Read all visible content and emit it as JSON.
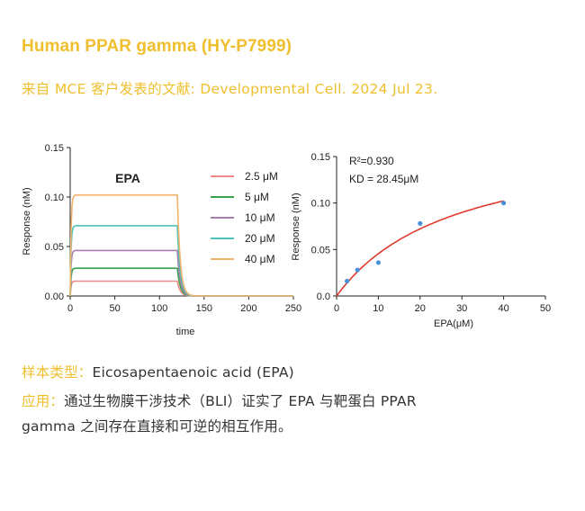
{
  "header": {
    "title": "Human PPAR gamma (HY-P7999)",
    "source": "来自 MCE 客户发表的文献: Developmental Cell. 2024 Jul 23."
  },
  "colors": {
    "accent": "#EFBF2E",
    "body_text": "#333333",
    "fit_line": "#E03A2F",
    "points": "#4A90D9"
  },
  "chart_data": [
    {
      "type": "line",
      "title": "EPA",
      "xlabel": "time",
      "ylabel": "Response (nM)",
      "xlim": [
        0,
        250
      ],
      "ylim": [
        0,
        0.15
      ],
      "xticks": [
        "0",
        "50",
        "100",
        "150",
        "200",
        "250"
      ],
      "yticks": [
        "0.00",
        "0.05",
        "0.10",
        "0.15"
      ],
      "grid": false,
      "legend_position": "right",
      "association_end": 120,
      "series": [
        {
          "name": "2.5 μM",
          "color": "#F08A8A",
          "plateau": 0.015
        },
        {
          "name": "5 μM",
          "color": "#3BA14A",
          "plateau": 0.028
        },
        {
          "name": "10 μM",
          "color": "#A77DAE",
          "plateau": 0.046
        },
        {
          "name": "20 μM",
          "color": "#4EC3B8",
          "plateau": 0.071
        },
        {
          "name": "40 μM",
          "color": "#F2B36C",
          "plateau": 0.102
        }
      ]
    },
    {
      "type": "scatter",
      "xlabel": "EPA(μM)",
      "ylabel": "Response (nM)",
      "xlim": [
        0,
        50
      ],
      "ylim": [
        0,
        0.15
      ],
      "xticks": [
        "0",
        "10",
        "20",
        "30",
        "40",
        "50"
      ],
      "yticks": [
        "0.0",
        "0.05",
        "0.10",
        "0.15"
      ],
      "grid": false,
      "annotations": [
        "R²=0.930",
        "KD = 28.45μM"
      ],
      "points": [
        {
          "x": 2.5,
          "y": 0.016
        },
        {
          "x": 5,
          "y": 0.028
        },
        {
          "x": 10,
          "y": 0.036
        },
        {
          "x": 20,
          "y": 0.078
        },
        {
          "x": 40,
          "y": 0.1
        }
      ],
      "fit": {
        "model": "one-site binding",
        "Bmax": 0.175,
        "KD": 28.45
      }
    }
  ],
  "info": {
    "sample_label": "样本类型：",
    "sample_value": "Eicosapentaenoic acid (EPA)",
    "application_label": "应用：",
    "application_line1": "通过生物膜干涉技术（BLI）证实了 EPA 与靶蛋白 PPAR",
    "application_line2": "gamma 之间存在直接和可逆的相互作用。"
  }
}
